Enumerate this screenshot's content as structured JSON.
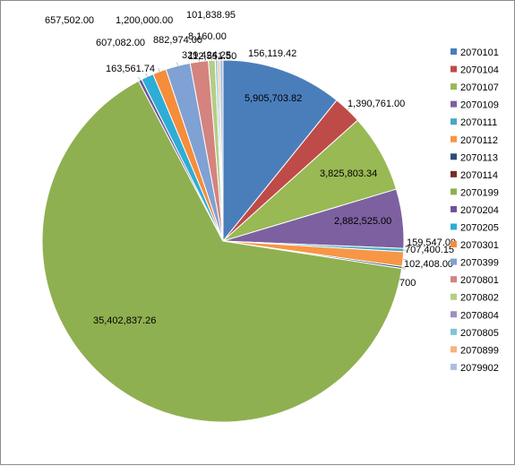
{
  "chart_data": {
    "type": "pie",
    "title": "",
    "legend_position": "right",
    "slices": [
      {
        "name": "2070101",
        "value": 5905703.82,
        "label": "5,905,703.82",
        "color": "#4a7ebb"
      },
      {
        "name": "2070104",
        "value": 1390761.0,
        "label": "1,390,761.00",
        "color": "#be4b48"
      },
      {
        "name": "2070107",
        "value": 3825803.34,
        "label": "3,825,803.34",
        "color": "#98b954"
      },
      {
        "name": "2070109",
        "value": 2882525.0,
        "label": "2,882,525.00",
        "color": "#7d60a0"
      },
      {
        "name": "2070111",
        "value": 159547.0,
        "label": "159,547.00",
        "color": "#46aac5"
      },
      {
        "name": "2070112",
        "value": 707400.15,
        "label": "707,400.15",
        "color": "#f79646"
      },
      {
        "name": "2070113",
        "value": 102408.0,
        "label": "102,408.00",
        "color": "#2c4d75"
      },
      {
        "name": "2070114",
        "value": 700,
        "label": "700",
        "color": "#772c2a"
      },
      {
        "name": "2070199",
        "value": 35402837.26,
        "label": "35,402,837.26",
        "color": "#8fb050"
      },
      {
        "name": "2070204",
        "value": 163561.74,
        "label": "163,561.74",
        "color": "#70539a"
      },
      {
        "name": "2070205",
        "value": 607082.0,
        "label": "607,082.00",
        "color": "#2eadd6"
      },
      {
        "name": "2070301",
        "value": 657502.0,
        "label": "657,502.00",
        "color": "#f58d3b"
      },
      {
        "name": "2070399",
        "value": 1200000.0,
        "label": "1,200,000.00",
        "color": "#7fa1d3"
      },
      {
        "name": "2070801",
        "value": 882974.0,
        "label": "882,974.00",
        "color": "#d4837f"
      },
      {
        "name": "2070802",
        "value": 329424.25,
        "label": "329,424.25",
        "color": "#b5cd85"
      },
      {
        "name": "2070804",
        "value": 8160.0,
        "label": "8,160.00",
        "color": "#9f8fbf"
      },
      {
        "name": "2070805",
        "value": 112551.5,
        "label": "112,551.50",
        "color": "#7ec5d6"
      },
      {
        "name": "2070899",
        "value": 101838.95,
        "label": "101,838.95",
        "color": "#f9b27a"
      },
      {
        "name": "2079902",
        "value": 156119.42,
        "label": "156,119.42",
        "color": "#a9c0e2"
      }
    ]
  }
}
